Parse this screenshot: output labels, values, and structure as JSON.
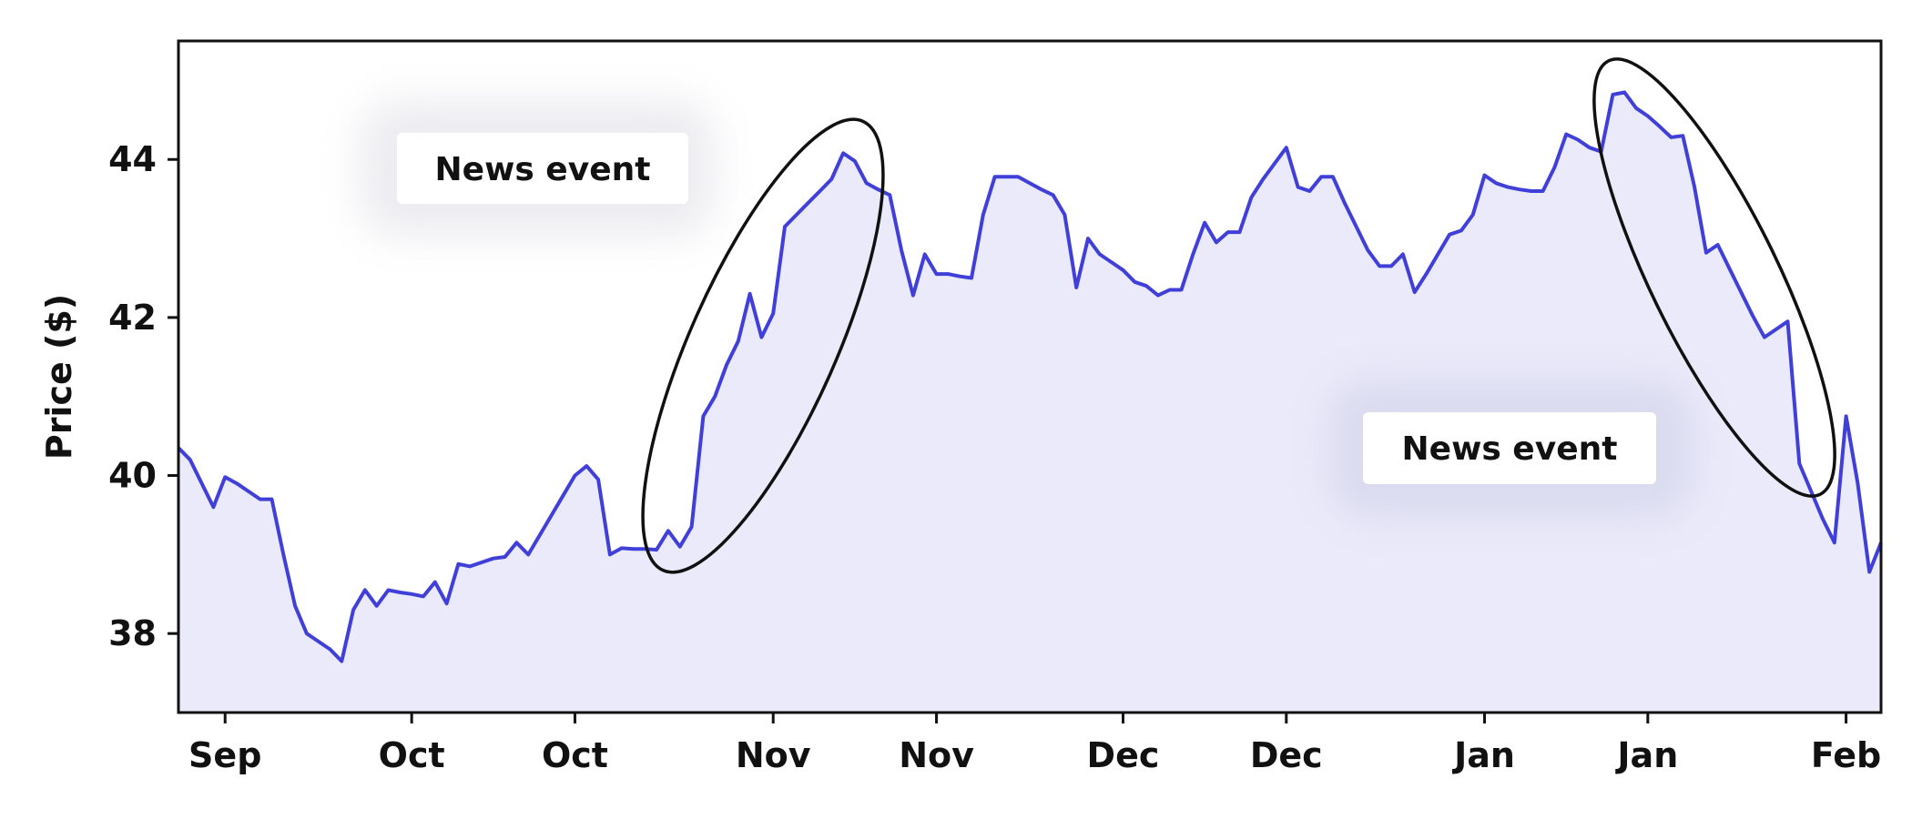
{
  "chart_data": {
    "type": "area",
    "title": "",
    "xlabel": "",
    "ylabel": "Price ($)",
    "ylim": [
      37.0,
      45.5
    ],
    "yticks": [
      38,
      40,
      42,
      44
    ],
    "grid": false,
    "x_ticks": [
      {
        "t": 4,
        "label": "Sep"
      },
      {
        "t": 20,
        "label": "Oct"
      },
      {
        "t": 34,
        "label": "Oct"
      },
      {
        "t": 51,
        "label": "Nov"
      },
      {
        "t": 65,
        "label": "Nov"
      },
      {
        "t": 81,
        "label": "Dec"
      },
      {
        "t": 95,
        "label": "Dec"
      },
      {
        "t": 112,
        "label": "Jan"
      },
      {
        "t": 126,
        "label": "Jan"
      },
      {
        "t": 143,
        "label": "Feb"
      }
    ],
    "series": [
      {
        "color": "#4040d9",
        "fill": "#eaeafb",
        "values": [
          40.35,
          40.2,
          39.9,
          39.6,
          39.98,
          39.9,
          39.8,
          39.7,
          39.7,
          39.0,
          38.35,
          38.0,
          37.9,
          37.8,
          37.65,
          38.3,
          38.55,
          38.35,
          38.55,
          38.52,
          38.5,
          38.47,
          38.65,
          38.38,
          38.88,
          38.85,
          38.9,
          38.95,
          38.97,
          39.15,
          39.0,
          39.25,
          39.5,
          39.75,
          40.0,
          40.12,
          39.95,
          39.0,
          39.08,
          39.07,
          39.07,
          39.06,
          39.3,
          39.1,
          39.35,
          40.75,
          41.0,
          41.4,
          41.7,
          42.3,
          41.75,
          42.05,
          43.15,
          43.3,
          43.45,
          43.6,
          43.75,
          44.08,
          43.98,
          43.7,
          43.62,
          43.55,
          42.85,
          42.28,
          42.8,
          42.55,
          42.55,
          42.52,
          42.5,
          43.3,
          43.78,
          43.78,
          43.78,
          43.7,
          43.62,
          43.55,
          43.3,
          42.38,
          43.0,
          42.8,
          42.7,
          42.6,
          42.45,
          42.4,
          42.28,
          42.35,
          42.35,
          42.8,
          43.2,
          42.95,
          43.08,
          43.08,
          43.52,
          43.75,
          43.95,
          44.15,
          43.65,
          43.6,
          43.78,
          43.78,
          43.45,
          43.15,
          42.85,
          42.65,
          42.65,
          42.8,
          42.32,
          42.55,
          42.8,
          43.05,
          43.1,
          43.3,
          43.8,
          43.7,
          43.65,
          43.62,
          43.6,
          43.6,
          43.9,
          44.32,
          44.25,
          44.15,
          44.1,
          44.82,
          44.85,
          44.65,
          44.55,
          44.42,
          44.28,
          44.3,
          43.65,
          42.82,
          42.92,
          42.62,
          42.32,
          42.02,
          41.75,
          41.85,
          41.95,
          40.15,
          39.8,
          39.45,
          39.15,
          40.75,
          39.9,
          38.78,
          39.15
        ]
      }
    ],
    "annotations": [
      {
        "text": "News event"
      },
      {
        "text": "News event"
      }
    ]
  }
}
